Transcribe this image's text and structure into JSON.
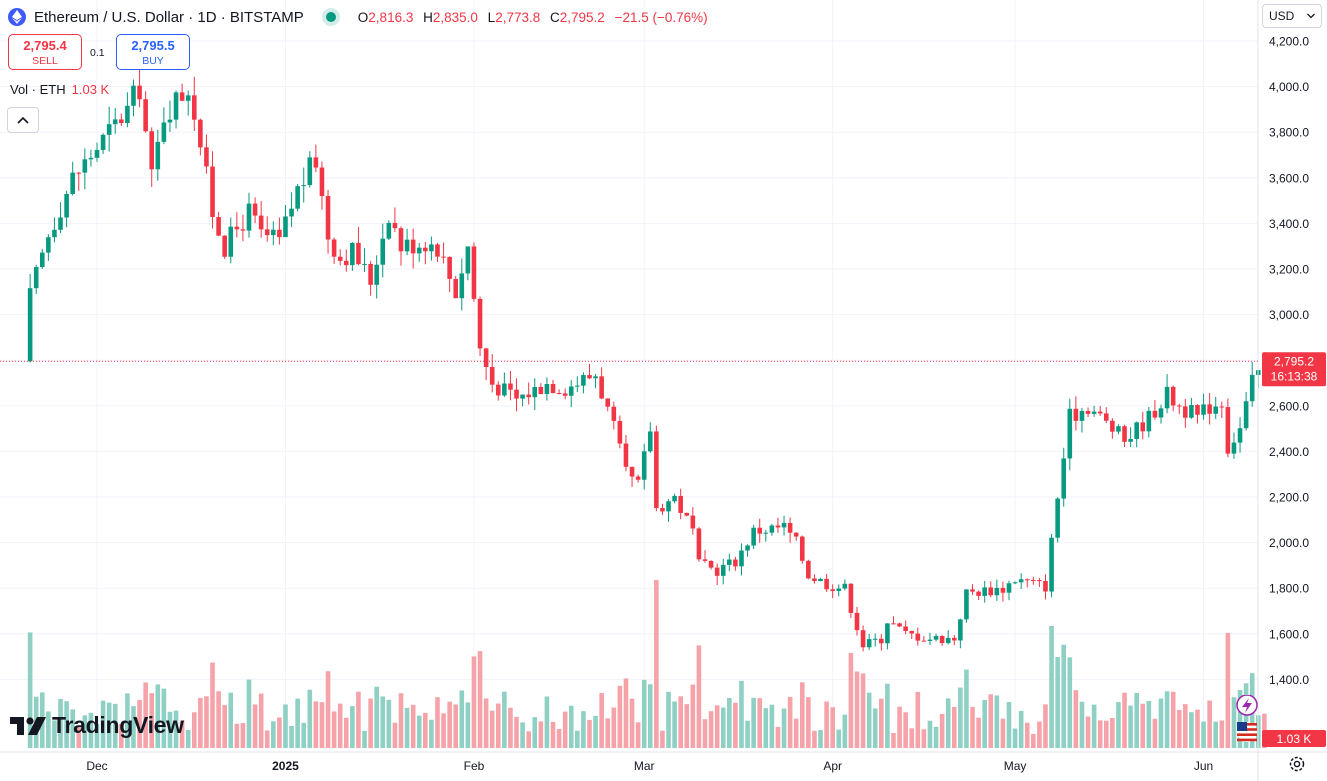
{
  "header": {
    "title": "Ethereum / U.S. Dollar · 1D · BITSTAMP",
    "ohlc": [
      {
        "k": "O",
        "v": "2,816.3"
      },
      {
        "k": "H",
        "v": "2,835.0"
      },
      {
        "k": "L",
        "v": "2,773.8"
      },
      {
        "k": "C",
        "v": "2,795.2"
      }
    ],
    "change": "−21.5 (−0.76%)"
  },
  "trade": {
    "sell_price": "2,795.4",
    "sell_label": "SELL",
    "buy_price": "2,795.5",
    "buy_label": "BUY",
    "spread": "0.1"
  },
  "volume_legend": {
    "label": "Vol · ETH",
    "value": "1.03 K"
  },
  "currency": "USD",
  "brand": "TradingView",
  "colors": {
    "up": "#089981",
    "down": "#f23645",
    "up_vol": "#8fd0c4",
    "down_vol": "#f5a3a8",
    "grid": "#f0f3fa",
    "text": "#131722"
  },
  "chart_data": {
    "type": "candlestick",
    "title": "Ethereum / U.S. Dollar · 1D · BITSTAMP",
    "y_axis": {
      "ticks": [
        "4,200.0",
        "4,000.0",
        "3,800.0",
        "3,600.0",
        "3,400.0",
        "3,200.0",
        "3,000.0",
        "2,800.0",
        "2,600.0",
        "2,400.0",
        "2,200.0",
        "2,000.0",
        "1,800.0",
        "1,600.0",
        "1,400.0"
      ],
      "range": [
        1230,
        4250
      ]
    },
    "x_axis": {
      "ticks": [
        "Dec",
        "2025",
        "Feb",
        "Mar",
        "Apr",
        "May",
        "Jun"
      ]
    },
    "last_price_label": "2,795.2",
    "countdown_label": "16:13:38",
    "volume_label": "1.03 K",
    "anchors": [
      [
        "2024-11-20",
        3080
      ],
      [
        "2024-11-23",
        3350
      ],
      [
        "2024-11-27",
        3600
      ],
      [
        "2024-11-30",
        3700
      ],
      [
        "2024-12-06",
        3900
      ],
      [
        "2024-12-08",
        4000
      ],
      [
        "2024-12-10",
        3600
      ],
      [
        "2024-12-12",
        3880
      ],
      [
        "2024-12-16",
        4000
      ],
      [
        "2024-12-17",
        3900
      ],
      [
        "2024-12-20",
        3450
      ],
      [
        "2024-12-22",
        3300
      ],
      [
        "2024-12-26",
        3450
      ],
      [
        "2024-12-28",
        3350
      ],
      [
        "2024-12-31",
        3320
      ],
      [
        "2025-01-03",
        3550
      ],
      [
        "2025-01-06",
        3680
      ],
      [
        "2025-01-08",
        3350
      ],
      [
        "2025-01-10",
        3250
      ],
      [
        "2025-01-12",
        3280
      ],
      [
        "2025-01-15",
        3150
      ],
      [
        "2025-01-18",
        3450
      ],
      [
        "2025-01-20",
        3300
      ],
      [
        "2025-01-24",
        3320
      ],
      [
        "2025-01-26",
        3300
      ],
      [
        "2025-01-29",
        3100
      ],
      [
        "2025-01-31",
        3300
      ],
      [
        "2025-02-02",
        2850
      ],
      [
        "2025-02-04",
        2700
      ],
      [
        "2025-02-08",
        2630
      ],
      [
        "2025-02-13",
        2700
      ],
      [
        "2025-02-16",
        2680
      ],
      [
        "2025-02-21",
        2740
      ],
      [
        "2025-02-24",
        2500
      ],
      [
        "2025-02-26",
        2300
      ],
      [
        "2025-02-28",
        2250
      ],
      [
        "2025-03-02",
        2500
      ],
      [
        "2025-03-03",
        2150
      ],
      [
        "2025-03-06",
        2200
      ],
      [
        "2025-03-09",
        2050
      ],
      [
        "2025-03-10",
        1900
      ],
      [
        "2025-03-13",
        1880
      ],
      [
        "2025-03-16",
        1920
      ],
      [
        "2025-03-19",
        2050
      ],
      [
        "2025-03-24",
        2070
      ],
      [
        "2025-03-26",
        2000
      ],
      [
        "2025-03-28",
        1860
      ],
      [
        "2025-03-31",
        1820
      ],
      [
        "2025-04-03",
        1800
      ],
      [
        "2025-04-06",
        1550
      ],
      [
        "2025-04-09",
        1580
      ],
      [
        "2025-04-10",
        1660
      ],
      [
        "2025-04-13",
        1600
      ],
      [
        "2025-04-17",
        1580
      ],
      [
        "2025-04-21",
        1580
      ],
      [
        "2025-04-23",
        1780
      ],
      [
        "2025-04-29",
        1800
      ],
      [
        "2025-05-01",
        1840
      ],
      [
        "2025-05-06",
        1810
      ],
      [
        "2025-05-08",
        2200
      ],
      [
        "2025-05-10",
        2550
      ],
      [
        "2025-05-13",
        2600
      ],
      [
        "2025-05-15",
        2550
      ],
      [
        "2025-05-19",
        2450
      ],
      [
        "2025-05-23",
        2550
      ],
      [
        "2025-05-26",
        2650
      ],
      [
        "2025-05-28",
        2600
      ],
      [
        "2025-05-31",
        2550
      ],
      [
        "2025-06-02",
        2600
      ],
      [
        "2025-06-04",
        2620
      ],
      [
        "2025-06-05",
        2420
      ],
      [
        "2025-06-07",
        2500
      ],
      [
        "2025-06-09",
        2700
      ],
      [
        "2025-06-11",
        2795
      ]
    ]
  }
}
